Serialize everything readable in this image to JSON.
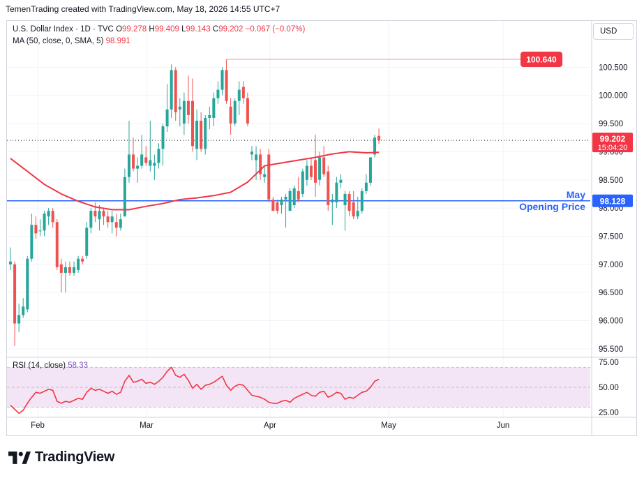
{
  "header": {
    "attribution": "TemenTrading created with TradingView.com, May 18, 2026 14:55 UTC+7"
  },
  "legend": {
    "symbol": "U.S. Dollar Index · 1D · TVC",
    "open_label": "O",
    "open": "99.278",
    "high_label": "H",
    "high": "99.409",
    "low_label": "L",
    "low": "99.143",
    "close_label": "C",
    "close": "99.202",
    "change": "−0.067 (−0.07%)",
    "ma_label": "MA (50, close, 0, SMA, 5)",
    "ma_value": "98.991"
  },
  "toolbar": {
    "currency": "USD"
  },
  "rsi_legend": {
    "label": "RSI (14, close)",
    "value": "58.33"
  },
  "footer": {
    "brand": "TradingView"
  },
  "colors": {
    "up": "#26a69a",
    "down": "#ef5350",
    "ma": "#f23645",
    "level_line": "#2962ff",
    "rsi_line": "#f23645",
    "rsi_band": "#f3e5f5",
    "grid": "#f0f3fa"
  },
  "chart_data": [
    {
      "type": "candlestick",
      "title": "U.S. Dollar Index · 1D · TVC",
      "y_ticks": [
        "100.500",
        "100.000",
        "99.500",
        "99.000",
        "98.500",
        "98.000",
        "97.500",
        "97.000",
        "96.500",
        "96.000",
        "95.500"
      ],
      "ylim": [
        95.35,
        100.95
      ],
      "x_ticks": [
        "Feb",
        "Mar",
        "Apr",
        "May",
        "Jun"
      ],
      "grid": true,
      "candles": [
        {
          "o": 97.0,
          "h": 97.3,
          "l": 96.9,
          "c": 97.05
        },
        {
          "o": 97.0,
          "h": 97.05,
          "l": 95.55,
          "c": 95.95
        },
        {
          "o": 95.95,
          "h": 96.3,
          "l": 95.8,
          "c": 96.1
        },
        {
          "o": 96.1,
          "h": 96.4,
          "l": 96.05,
          "c": 96.25
        },
        {
          "o": 96.2,
          "h": 97.15,
          "l": 96.15,
          "c": 97.1
        },
        {
          "o": 97.1,
          "h": 97.9,
          "l": 97.05,
          "c": 97.7
        },
        {
          "o": 97.7,
          "h": 97.85,
          "l": 97.45,
          "c": 97.55
        },
        {
          "o": 97.6,
          "h": 97.8,
          "l": 97.5,
          "c": 97.6
        },
        {
          "o": 97.6,
          "h": 97.95,
          "l": 97.5,
          "c": 97.9
        },
        {
          "o": 97.85,
          "h": 98.0,
          "l": 97.7,
          "c": 97.95
        },
        {
          "o": 97.95,
          "h": 98.0,
          "l": 97.65,
          "c": 97.75
        },
        {
          "o": 97.75,
          "h": 97.8,
          "l": 96.9,
          "c": 96.95
        },
        {
          "o": 97.0,
          "h": 97.1,
          "l": 96.5,
          "c": 96.85
        },
        {
          "o": 96.85,
          "h": 97.05,
          "l": 96.5,
          "c": 96.95
        },
        {
          "o": 96.95,
          "h": 97.05,
          "l": 96.8,
          "c": 96.85
        },
        {
          "o": 96.85,
          "h": 97.05,
          "l": 96.8,
          "c": 96.95
        },
        {
          "o": 96.9,
          "h": 97.15,
          "l": 96.85,
          "c": 97.1
        },
        {
          "o": 97.1,
          "h": 97.15,
          "l": 97.0,
          "c": 97.05
        },
        {
          "o": 97.15,
          "h": 97.75,
          "l": 97.1,
          "c": 97.65
        },
        {
          "o": 97.65,
          "h": 98.0,
          "l": 97.55,
          "c": 97.95
        },
        {
          "o": 97.95,
          "h": 98.1,
          "l": 97.75,
          "c": 97.85
        },
        {
          "o": 97.8,
          "h": 98.05,
          "l": 97.6,
          "c": 97.95
        },
        {
          "o": 97.95,
          "h": 98.0,
          "l": 97.7,
          "c": 97.85
        },
        {
          "o": 97.85,
          "h": 97.95,
          "l": 97.65,
          "c": 97.75
        },
        {
          "o": 97.75,
          "h": 97.95,
          "l": 97.55,
          "c": 97.85
        },
        {
          "o": 97.75,
          "h": 97.9,
          "l": 97.5,
          "c": 97.65
        },
        {
          "o": 97.65,
          "h": 97.9,
          "l": 97.6,
          "c": 97.8
        },
        {
          "o": 97.85,
          "h": 98.7,
          "l": 97.85,
          "c": 98.55
        },
        {
          "o": 98.55,
          "h": 99.55,
          "l": 98.45,
          "c": 98.95
        },
        {
          "o": 98.95,
          "h": 99.25,
          "l": 98.65,
          "c": 98.7
        },
        {
          "o": 98.7,
          "h": 98.9,
          "l": 98.45,
          "c": 98.75
        },
        {
          "o": 98.75,
          "h": 99.3,
          "l": 98.7,
          "c": 98.95
        },
        {
          "o": 98.9,
          "h": 99.1,
          "l": 98.75,
          "c": 98.8
        },
        {
          "o": 98.75,
          "h": 99.55,
          "l": 98.65,
          "c": 98.85
        },
        {
          "o": 98.75,
          "h": 98.95,
          "l": 98.5,
          "c": 98.8
        },
        {
          "o": 98.8,
          "h": 99.15,
          "l": 98.7,
          "c": 99.05
        },
        {
          "o": 99.05,
          "h": 99.5,
          "l": 98.75,
          "c": 99.45
        },
        {
          "o": 99.45,
          "h": 100.2,
          "l": 99.35,
          "c": 99.75
        },
        {
          "o": 99.75,
          "h": 100.55,
          "l": 99.6,
          "c": 100.45
        },
        {
          "o": 100.45,
          "h": 100.5,
          "l": 99.55,
          "c": 99.7
        },
        {
          "o": 99.75,
          "h": 99.95,
          "l": 99.45,
          "c": 99.8
        },
        {
          "o": 99.5,
          "h": 100.05,
          "l": 99.3,
          "c": 99.9
        },
        {
          "o": 99.9,
          "h": 100.35,
          "l": 99.5,
          "c": 99.65
        },
        {
          "o": 99.9,
          "h": 100.3,
          "l": 99.0,
          "c": 99.1
        },
        {
          "o": 99.05,
          "h": 99.75,
          "l": 98.85,
          "c": 99.55
        },
        {
          "o": 99.55,
          "h": 99.7,
          "l": 99.0,
          "c": 99.05
        },
        {
          "o": 99.05,
          "h": 99.65,
          "l": 98.95,
          "c": 99.6
        },
        {
          "o": 99.6,
          "h": 99.8,
          "l": 99.4,
          "c": 99.65
        },
        {
          "o": 99.6,
          "h": 100.05,
          "l": 99.45,
          "c": 99.95
        },
        {
          "o": 99.95,
          "h": 100.25,
          "l": 99.85,
          "c": 100.1
        },
        {
          "o": 100.1,
          "h": 100.5,
          "l": 100.0,
          "c": 100.45
        },
        {
          "o": 100.45,
          "h": 100.64,
          "l": 99.85,
          "c": 99.9
        },
        {
          "o": 99.8,
          "h": 99.95,
          "l": 99.3,
          "c": 99.5
        },
        {
          "o": 99.5,
          "h": 99.95,
          "l": 99.45,
          "c": 99.9
        },
        {
          "o": 99.9,
          "h": 100.25,
          "l": 99.65,
          "c": 100.1
        },
        {
          "o": 100.15,
          "h": 100.25,
          "l": 99.85,
          "c": 99.95
        },
        {
          "o": 99.95,
          "h": 100.05,
          "l": 99.45,
          "c": 99.5
        },
        {
          "o": 98.95,
          "h": 99.1,
          "l": 98.85,
          "c": 99.0
        },
        {
          "o": 98.85,
          "h": 99.1,
          "l": 98.5,
          "c": 98.95
        },
        {
          "o": 98.95,
          "h": 99.05,
          "l": 98.5,
          "c": 98.6
        },
        {
          "o": 98.55,
          "h": 98.75,
          "l": 98.45,
          "c": 98.6
        },
        {
          "o": 98.95,
          "h": 99.05,
          "l": 98.1,
          "c": 98.15
        },
        {
          "o": 98.15,
          "h": 98.2,
          "l": 97.95,
          "c": 97.95
        },
        {
          "o": 98.1,
          "h": 98.15,
          "l": 97.9,
          "c": 97.95
        },
        {
          "o": 98.05,
          "h": 98.2,
          "l": 97.9,
          "c": 98.15
        },
        {
          "o": 98.15,
          "h": 98.25,
          "l": 97.65,
          "c": 98.2
        },
        {
          "o": 97.95,
          "h": 98.35,
          "l": 97.95,
          "c": 98.3
        },
        {
          "o": 98.05,
          "h": 98.4,
          "l": 98.0,
          "c": 98.35
        },
        {
          "o": 98.3,
          "h": 98.55,
          "l": 98.1,
          "c": 98.15
        },
        {
          "o": 98.25,
          "h": 98.7,
          "l": 98.2,
          "c": 98.65
        },
        {
          "o": 98.5,
          "h": 98.85,
          "l": 98.4,
          "c": 98.75
        },
        {
          "o": 98.75,
          "h": 98.9,
          "l": 98.5,
          "c": 98.55
        },
        {
          "o": 98.85,
          "h": 99.3,
          "l": 98.2,
          "c": 98.45
        },
        {
          "o": 98.5,
          "h": 99.0,
          "l": 98.4,
          "c": 98.9
        },
        {
          "o": 98.9,
          "h": 99.1,
          "l": 98.55,
          "c": 98.6
        },
        {
          "o": 98.65,
          "h": 98.75,
          "l": 97.95,
          "c": 98.05
        },
        {
          "o": 98.1,
          "h": 98.25,
          "l": 97.7,
          "c": 98.15
        },
        {
          "o": 98.1,
          "h": 98.55,
          "l": 98.0,
          "c": 98.45
        },
        {
          "o": 98.45,
          "h": 98.6,
          "l": 98.35,
          "c": 98.5
        },
        {
          "o": 98.05,
          "h": 98.3,
          "l": 97.6,
          "c": 98.25
        },
        {
          "o": 98.25,
          "h": 98.3,
          "l": 97.85,
          "c": 97.95
        },
        {
          "o": 98.1,
          "h": 98.3,
          "l": 97.8,
          "c": 97.85
        },
        {
          "o": 97.85,
          "h": 98.2,
          "l": 97.8,
          "c": 97.95
        },
        {
          "o": 97.95,
          "h": 98.35,
          "l": 97.9,
          "c": 98.3
        },
        {
          "o": 98.3,
          "h": 98.6,
          "l": 98.25,
          "c": 98.45
        },
        {
          "o": 98.45,
          "h": 98.9,
          "l": 98.4,
          "c": 98.9
        },
        {
          "o": 98.95,
          "h": 99.3,
          "l": 98.9,
          "c": 99.25
        },
        {
          "o": 99.28,
          "h": 99.41,
          "l": 99.14,
          "c": 99.2
        }
      ],
      "ma_series": {
        "name": "MA (50, close, 0, SMA, 5)",
        "values": [
          [
            0,
            98.88
          ],
          [
            4,
            98.65
          ],
          [
            8,
            98.42
          ],
          [
            12,
            98.25
          ],
          [
            16,
            98.12
          ],
          [
            20,
            98.02
          ],
          [
            24,
            97.97
          ],
          [
            28,
            97.97
          ],
          [
            32,
            98.03
          ],
          [
            36,
            98.08
          ],
          [
            40,
            98.15
          ],
          [
            44,
            98.18
          ],
          [
            48,
            98.22
          ],
          [
            52,
            98.28
          ],
          [
            56,
            98.46
          ],
          [
            60,
            98.75
          ],
          [
            64,
            98.8
          ],
          [
            68,
            98.85
          ],
          [
            72,
            98.9
          ],
          [
            76,
            98.96
          ],
          [
            80,
            99.0
          ],
          [
            84,
            98.98
          ],
          [
            87,
            98.99
          ]
        ]
      },
      "price_line": {
        "label": "100.640",
        "value": 100.64,
        "from_candle": 51
      },
      "level_line": {
        "label": "May Opening Price",
        "label_line1": "May",
        "label_line2": "Opening Price",
        "value": 98.128,
        "price_label": "98.128"
      },
      "last_price": {
        "price": "99.202",
        "countdown": "15:04:20",
        "value": 99.202
      }
    },
    {
      "type": "line",
      "title": "RSI (14, close)",
      "y_ticks": [
        "75.00",
        "50.00",
        "25.00"
      ],
      "ylim": [
        20,
        80
      ],
      "band": [
        30,
        70
      ],
      "series": [
        {
          "name": "RSI (14, close)",
          "values": [
            32,
            28,
            24,
            27,
            34,
            40,
            45,
            44,
            46,
            48,
            47,
            36,
            34,
            36,
            35,
            37,
            39,
            38,
            45,
            49,
            47,
            48,
            46,
            44,
            46,
            43,
            45,
            56,
            62,
            55,
            56,
            58,
            54,
            55,
            53,
            56,
            60,
            66,
            70,
            62,
            60,
            63,
            57,
            49,
            53,
            48,
            52,
            53,
            55,
            58,
            61,
            52,
            47,
            51,
            53,
            52,
            47,
            42,
            41,
            40,
            38,
            35,
            34,
            34,
            36,
            37,
            35,
            39,
            41,
            43,
            45,
            42,
            41,
            45,
            46,
            40,
            42,
            45,
            44,
            38,
            40,
            39,
            42,
            45,
            46,
            50,
            56,
            58
          ]
        }
      ]
    }
  ]
}
